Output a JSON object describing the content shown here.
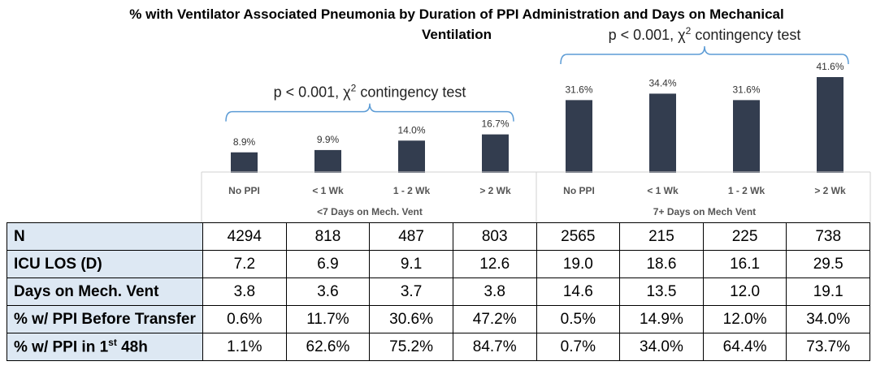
{
  "chart_data": {
    "type": "bar",
    "title": "% with Ventilator Associated Pneumonia by Duration of PPI Administration and Days on Mechanical Ventilation",
    "title_line1": "% with Ventilator Associated Pneumonia by Duration of PPI Administration and Days on Mechanical",
    "title_line2": "Ventilation",
    "groups": [
      {
        "label": "<7 Days on Mech. Vent",
        "categories": [
          "No PPI",
          "< 1 Wk",
          "1 - 2 Wk",
          "> 2 Wk"
        ],
        "values": [
          8.9,
          9.9,
          14.0,
          16.7
        ],
        "value_labels": [
          "8.9%",
          "9.9%",
          "14.0%",
          "16.7%"
        ],
        "annotation": {
          "prefix": "p < 0.001, χ",
          "sup": "2",
          "suffix": " contingency test"
        }
      },
      {
        "label": "7+ Days on Mech Vent",
        "categories": [
          "No PPI",
          "< 1 Wk",
          "1 - 2 Wk",
          "> 2 Wk"
        ],
        "values": [
          31.6,
          34.4,
          31.6,
          41.6
        ],
        "value_labels": [
          "31.6%",
          "34.4%",
          "31.6%",
          "41.6%"
        ],
        "annotation": {
          "prefix": "p < 0.001, χ",
          "sup": "2",
          "suffix": " contingency test"
        }
      }
    ],
    "bar_color": "#333d4f",
    "bracket_color": "#5b9bd5",
    "ylim": [
      0,
      45
    ],
    "grid": false,
    "legend": "none"
  },
  "table": {
    "rows": [
      {
        "label": "N",
        "cells": [
          "4294",
          "818",
          "487",
          "803",
          "2565",
          "215",
          "225",
          "738"
        ]
      },
      {
        "label": "ICU LOS (D)",
        "cells": [
          "7.2",
          "6.9",
          "9.1",
          "12.6",
          "19.0",
          "18.6",
          "16.1",
          "29.5"
        ]
      },
      {
        "label": "Days on Mech. Vent",
        "cells": [
          "3.8",
          "3.6",
          "3.7",
          "3.8",
          "14.6",
          "13.5",
          "12.0",
          "19.1"
        ]
      },
      {
        "label": "% w/ PPI Before Transfer",
        "cells": [
          "0.6%",
          "11.7%",
          "30.6%",
          "47.2%",
          "0.5%",
          "14.9%",
          "12.0%",
          "34.0%"
        ]
      },
      {
        "label_prefix": "% w/ PPI in 1",
        "label_sup": "st",
        "label_suffix": " 48h",
        "cells": [
          "1.1%",
          "62.6%",
          "75.2%",
          "84.7%",
          "0.7%",
          "34.0%",
          "64.4%",
          "73.7%"
        ]
      }
    ],
    "label_color": "#dde8f3"
  }
}
